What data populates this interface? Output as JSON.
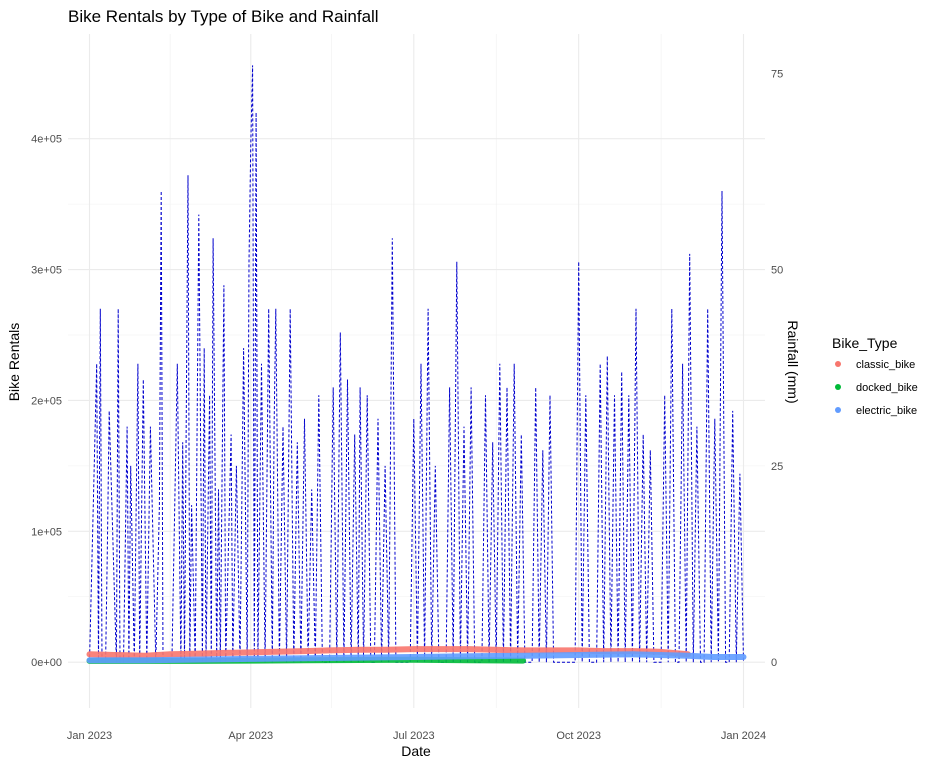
{
  "chart_data": {
    "type": "line",
    "title": "Bike Rentals by Type of Bike and Rainfall",
    "xlabel": "Date",
    "ylabel": "Bike Rentals",
    "y2label": "Rainfall (mm)",
    "xlim": [
      "2022-12-20",
      "2024-01-13"
    ],
    "ylim": [
      -35000,
      480000
    ],
    "y2lim": [
      -5.833,
      80.0
    ],
    "y2_scale_note": "secondary axis = primary / 6000",
    "grid": true,
    "x_ticks": [
      {
        "date": "2023-01-01",
        "label": "Jan 2023"
      },
      {
        "date": "2023-04-01",
        "label": "Apr 2023"
      },
      {
        "date": "2023-07-01",
        "label": "Jul 2023"
      },
      {
        "date": "2023-10-01",
        "label": "Oct 2023"
      },
      {
        "date": "2024-01-01",
        "label": "Jan 2024"
      }
    ],
    "y_ticks": [
      {
        "value": 0,
        "label": "0e+00"
      },
      {
        "value": 100000,
        "label": "1e+05"
      },
      {
        "value": 200000,
        "label": "2e+05"
      },
      {
        "value": 300000,
        "label": "3e+05"
      },
      {
        "value": 400000,
        "label": "4e+05"
      }
    ],
    "y2_ticks": [
      {
        "value": 0,
        "label": "0"
      },
      {
        "value": 25,
        "label": "25"
      },
      {
        "value": 50,
        "label": "50"
      },
      {
        "value": 75,
        "label": "75"
      }
    ],
    "legend": {
      "title": "Bike_Type",
      "position": "right",
      "entries": [
        {
          "name": "classic_bike",
          "color": "#F8766D"
        },
        {
          "name": "docked_bike",
          "color": "#00BA38"
        },
        {
          "name": "electric_bike",
          "color": "#619CFF"
        }
      ]
    },
    "series": [
      {
        "name": "classic_bike",
        "color": "#F8766D",
        "x": [
          "2023-01-01",
          "2023-01-15",
          "2023-02-01",
          "2023-02-15",
          "2023-03-01",
          "2023-03-15",
          "2023-04-01",
          "2023-04-15",
          "2023-05-01",
          "2023-05-15",
          "2023-06-01",
          "2023-06-15",
          "2023-07-01",
          "2023-07-15",
          "2023-08-01",
          "2023-08-15",
          "2023-09-01",
          "2023-09-15",
          "2023-10-01",
          "2023-10-15",
          "2023-11-01",
          "2023-11-15",
          "2023-12-01"
        ],
        "values": [
          6000,
          5500,
          5000,
          6000,
          6500,
          7000,
          7500,
          8000,
          8500,
          9000,
          9500,
          9500,
          10000,
          10000,
          10000,
          9500,
          9000,
          9000,
          9000,
          8500,
          8500,
          8000,
          6000
        ]
      },
      {
        "name": "docked_bike",
        "color": "#00BA38",
        "x": [
          "2023-01-01",
          "2023-02-01",
          "2023-03-01",
          "2023-04-01",
          "2023-05-01",
          "2023-06-01",
          "2023-07-01",
          "2023-08-01",
          "2023-08-31"
        ],
        "values": [
          1000,
          1000,
          1000,
          1200,
          1500,
          1700,
          1800,
          1500,
          1200
        ]
      },
      {
        "name": "electric_bike",
        "color": "#619CFF",
        "x": [
          "2023-01-01",
          "2023-02-01",
          "2023-03-01",
          "2023-04-01",
          "2023-05-01",
          "2023-06-01",
          "2023-07-01",
          "2023-08-01",
          "2023-09-01",
          "2023-10-01",
          "2023-11-01",
          "2023-12-01",
          "2023-12-15",
          "2024-01-01"
        ],
        "values": [
          1500,
          1500,
          2000,
          2500,
          3000,
          3500,
          4000,
          4500,
          5000,
          5500,
          6000,
          5000,
          4000,
          4000
        ]
      },
      {
        "name": "",
        "color": "#0000CD",
        "axis": "secondary",
        "line_style": "dashed",
        "x": [
          "2023-01-01",
          "2023-01-05",
          "2023-01-06",
          "2023-01-07",
          "2023-01-08",
          "2023-01-10",
          "2023-01-11",
          "2023-01-12",
          "2023-01-16",
          "2023-01-17",
          "2023-01-18",
          "2023-01-20",
          "2023-01-22",
          "2023-01-23",
          "2023-01-24",
          "2023-01-26",
          "2023-01-28",
          "2023-01-29",
          "2023-01-31",
          "2023-02-02",
          "2023-02-04",
          "2023-02-07",
          "2023-02-09",
          "2023-02-10",
          "2023-02-11",
          "2023-02-14",
          "2023-02-16",
          "2023-02-19",
          "2023-02-21",
          "2023-02-22",
          "2023-02-23",
          "2023-02-25",
          "2023-02-26",
          "2023-02-27",
          "2023-03-01",
          "2023-03-03",
          "2023-03-05",
          "2023-03-06",
          "2023-03-07",
          "2023-03-09",
          "2023-03-10",
          "2023-03-11",
          "2023-03-13",
          "2023-03-14",
          "2023-03-15",
          "2023-03-17",
          "2023-03-18",
          "2023-03-21",
          "2023-03-22",
          "2023-03-24",
          "2023-03-26",
          "2023-03-28",
          "2023-03-30",
          "2023-03-31",
          "2023-04-01",
          "2023-04-02",
          "2023-04-03",
          "2023-04-04",
          "2023-04-05",
          "2023-04-07",
          "2023-04-09",
          "2023-04-11",
          "2023-04-13",
          "2023-04-14",
          "2023-04-15",
          "2023-04-17",
          "2023-04-19",
          "2023-04-21",
          "2023-04-23",
          "2023-04-25",
          "2023-04-27",
          "2023-04-29",
          "2023-05-01",
          "2023-05-03",
          "2023-05-05",
          "2023-05-07",
          "2023-05-09",
          "2023-05-11",
          "2023-05-13",
          "2023-05-15",
          "2023-05-17",
          "2023-05-19",
          "2023-05-21",
          "2023-05-23",
          "2023-05-25",
          "2023-05-27",
          "2023-05-29",
          "2023-05-31",
          "2023-06-01",
          "2023-06-03",
          "2023-06-05",
          "2023-06-07",
          "2023-06-09",
          "2023-06-11",
          "2023-06-13",
          "2023-06-15",
          "2023-06-17",
          "2023-06-19",
          "2023-06-21",
          "2023-06-23",
          "2023-06-25",
          "2023-06-27",
          "2023-06-29",
          "2023-07-01",
          "2023-07-03",
          "2023-07-05",
          "2023-07-07",
          "2023-07-09",
          "2023-07-11",
          "2023-07-13",
          "2023-07-15",
          "2023-07-17",
          "2023-07-19",
          "2023-07-21",
          "2023-07-23",
          "2023-07-25",
          "2023-07-27",
          "2023-07-29",
          "2023-07-31",
          "2023-08-02",
          "2023-08-04",
          "2023-08-06",
          "2023-08-08",
          "2023-08-10",
          "2023-08-12",
          "2023-08-14",
          "2023-08-16",
          "2023-08-18",
          "2023-08-20",
          "2023-08-22",
          "2023-08-24",
          "2023-08-26",
          "2023-08-28",
          "2023-08-30",
          "2023-09-01",
          "2023-09-03",
          "2023-09-05",
          "2023-09-07",
          "2023-09-09",
          "2023-09-11",
          "2023-09-13",
          "2023-09-15",
          "2023-09-17",
          "2023-09-19",
          "2023-09-21",
          "2023-09-23",
          "2023-09-25",
          "2023-09-27",
          "2023-09-29",
          "2023-10-01",
          "2023-10-03",
          "2023-10-05",
          "2023-10-07",
          "2023-10-09",
          "2023-10-11",
          "2023-10-13",
          "2023-10-15",
          "2023-10-17",
          "2023-10-19",
          "2023-10-21",
          "2023-10-23",
          "2023-10-25",
          "2023-10-27",
          "2023-10-29",
          "2023-10-31",
          "2023-11-02",
          "2023-11-04",
          "2023-11-06",
          "2023-11-08",
          "2023-11-10",
          "2023-11-12",
          "2023-11-14",
          "2023-11-16",
          "2023-11-18",
          "2023-11-20",
          "2023-11-22",
          "2023-11-24",
          "2023-11-26",
          "2023-11-28",
          "2023-11-30",
          "2023-12-02",
          "2023-12-04",
          "2023-12-06",
          "2023-12-08",
          "2023-12-10",
          "2023-12-12",
          "2023-12-14",
          "2023-12-16",
          "2023-12-18",
          "2023-12-20",
          "2023-12-22",
          "2023-12-24",
          "2023-12-26",
          "2023-12-28",
          "2023-12-30",
          "2024-01-01"
        ],
        "values": [
          0,
          38,
          0,
          45,
          0,
          0,
          15,
          32,
          0,
          45,
          0,
          0,
          30,
          0,
          25,
          0,
          38,
          0,
          36,
          0,
          30,
          0,
          20,
          60,
          0,
          0,
          0,
          38,
          0,
          28,
          0,
          62,
          0,
          20,
          0,
          57,
          0,
          40,
          0,
          34,
          0,
          54,
          0,
          22,
          0,
          48,
          0,
          29,
          0,
          25,
          0,
          40,
          0,
          51,
          66,
          76,
          0,
          70,
          0,
          38,
          0,
          45,
          0,
          30,
          45,
          0,
          30,
          0,
          45,
          0,
          28,
          0,
          31,
          0,
          22,
          0,
          34,
          0,
          0,
          0,
          35,
          0,
          42,
          0,
          36,
          0,
          29,
          0,
          35,
          0,
          34,
          0,
          0,
          31,
          0,
          25,
          0,
          54,
          0,
          0,
          0,
          0,
          0,
          31,
          0,
          38,
          0,
          45,
          0,
          25,
          0,
          0,
          0,
          35,
          0,
          51,
          0,
          30,
          0,
          35,
          0,
          0,
          0,
          34,
          0,
          28,
          0,
          38,
          0,
          35,
          0,
          38,
          0,
          29,
          0,
          0,
          0,
          35,
          0,
          27,
          0,
          34,
          0,
          0,
          0,
          0,
          0,
          0,
          0,
          51,
          0,
          34,
          0,
          0,
          0,
          38,
          0,
          39,
          0,
          34,
          0,
          37,
          0,
          34,
          0,
          45,
          0,
          29,
          0,
          27,
          0,
          0,
          0,
          34,
          0,
          45,
          0,
          0,
          38,
          0,
          52,
          0,
          30,
          0,
          0,
          45,
          0,
          31,
          0,
          60,
          0,
          0,
          32,
          0,
          24,
          0
        ]
      }
    ]
  }
}
